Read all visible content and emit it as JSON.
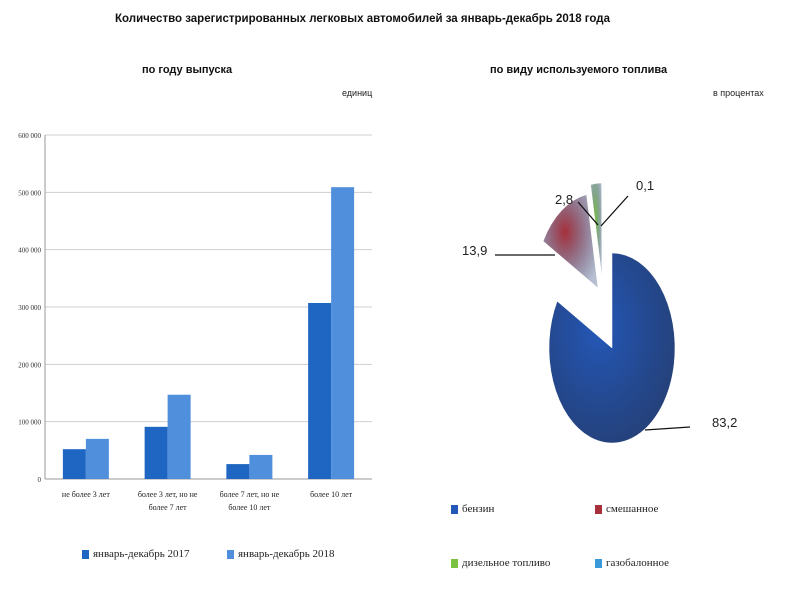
{
  "title": "Количество зарегистрированных  легковых автомобилей  за январь-декабрь  2018 года",
  "chart_data": [
    {
      "type": "bar",
      "title": "по году выпуска",
      "unit": "единиц",
      "categories": [
        "не более 3 лет",
        "более 3 лет, но не более 7 лет",
        "более 7 лет, но не более 10 лет",
        "более 10 лет"
      ],
      "series": [
        {
          "name": "январь-декабрь 2017",
          "color": "#1f66c2",
          "values": [
            52000,
            91000,
            26000,
            307000
          ]
        },
        {
          "name": "январь-декабрь 2018",
          "color": "#4f8fdb",
          "values": [
            70000,
            147000,
            42000,
            509000
          ]
        }
      ],
      "ylim": [
        0,
        600000
      ],
      "yticks": [
        "0",
        "100 000",
        "200 000",
        "300 000",
        "400 000",
        "500 000",
        "600 000"
      ],
      "grid": true,
      "legend": "bottom"
    },
    {
      "type": "pie",
      "title": "по виду используемого  топлива",
      "unit": "в процентах",
      "labels": [
        "бензин",
        "смешанное",
        "дизельное топливо",
        "газобалонное"
      ],
      "values": [
        83.2,
        13.9,
        2.8,
        0.1
      ],
      "data_labels": [
        "83,2",
        "13,9",
        "2,8",
        "0,1"
      ],
      "colors": [
        "#2458b8",
        "#a8303a",
        "#7cc242",
        "#3a9ad9"
      ],
      "legend": "bottom"
    }
  ]
}
